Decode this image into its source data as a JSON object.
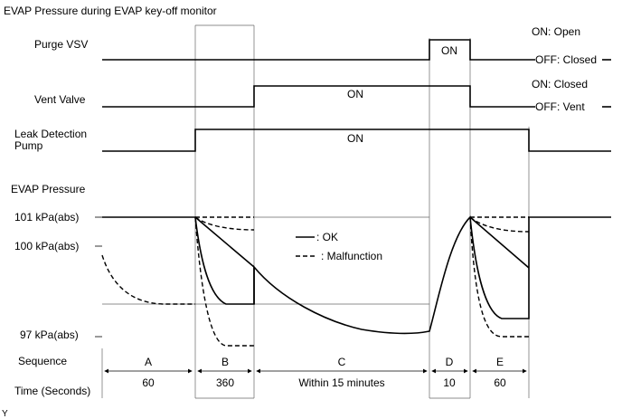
{
  "title": "EVAP Pressure during EVAP key-off monitor",
  "signals": {
    "purge_vsv": {
      "label": "Purge VSV",
      "on_text": "ON",
      "state_on": "ON: Open",
      "state_off": "OFF: Closed"
    },
    "vent_valve": {
      "label": "Vent Valve",
      "on_text": "ON",
      "state_on": "ON: Closed",
      "state_off": "OFF: Vent"
    },
    "leak_detection_pump": {
      "label_line1": "Leak Detection",
      "label_line2": "Pump",
      "on_text": "ON"
    }
  },
  "pressure": {
    "label": "EVAP Pressure",
    "ticks": [
      "101 kPa(abs)",
      "100 kPa(abs)",
      "97 kPa(abs)"
    ]
  },
  "legend": {
    "ok": "- : OK",
    "malfunction": "- - : Malfunction"
  },
  "sequence_label": "Sequence",
  "time_label": "Time (Seconds)",
  "phases": [
    {
      "name": "A",
      "time": "60"
    },
    {
      "name": "B",
      "time": "360"
    },
    {
      "name": "C",
      "time": "Within 15 minutes"
    },
    {
      "name": "D",
      "time": "10"
    },
    {
      "name": "E",
      "time": "60"
    }
  ],
  "footer_mark": "Y"
}
